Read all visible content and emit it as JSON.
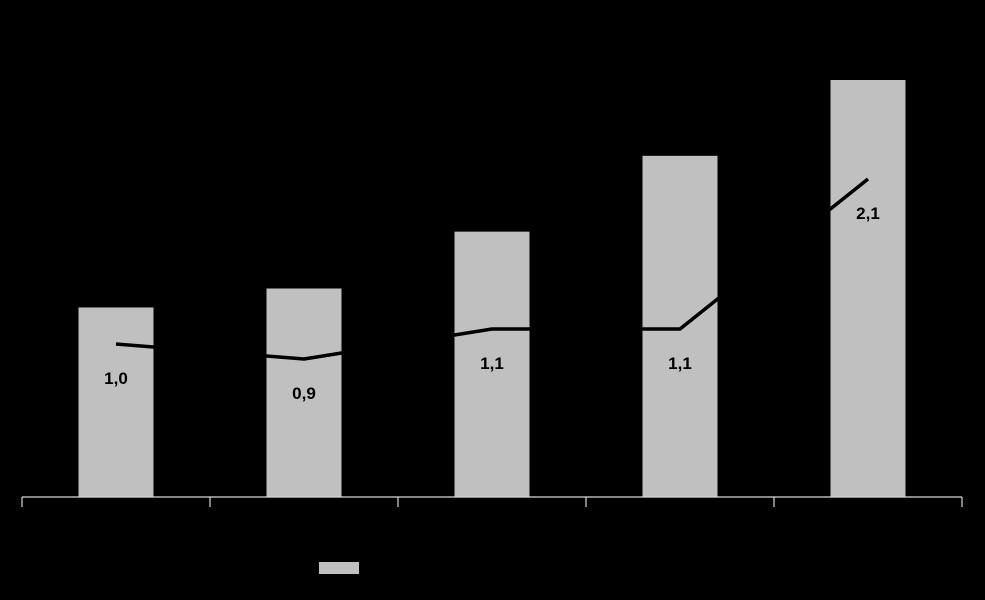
{
  "chart_data": {
    "type": "bar",
    "categories": [
      "",
      "",
      "",
      "",
      ""
    ],
    "title": "",
    "xlabel": "",
    "ylabel": "",
    "grid": false,
    "legend": "bottom-center",
    "colors": {
      "background": "#000000",
      "bars": "#c0c0c0",
      "line": "#000000",
      "axis": "#d9d9d9",
      "labels": "#000000"
    },
    "series": [
      {
        "type": "bar",
        "values": [
          1.0,
          1.1,
          1.4,
          1.8,
          2.2
        ]
      },
      {
        "type": "line",
        "values": [
          1.0,
          0.9,
          1.1,
          1.1,
          2.1
        ],
        "labels": [
          "1,0",
          "0,9",
          "1,1",
          "1,1",
          "2,1"
        ]
      }
    ],
    "ylim": [
      0,
      2.4
    ]
  }
}
